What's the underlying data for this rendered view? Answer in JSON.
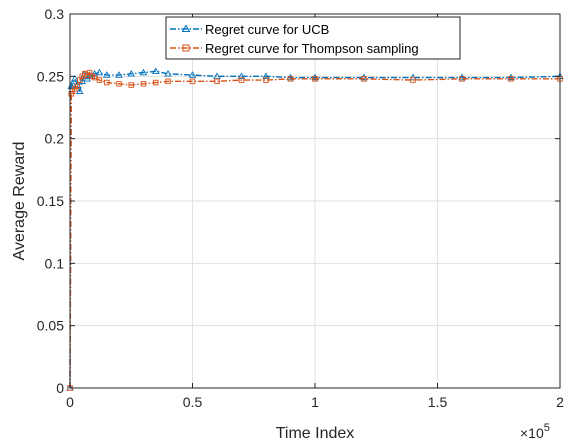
{
  "chart_data": {
    "type": "line",
    "xlabel": "Time Index",
    "ylabel": "Average Reward",
    "x_multiplier_base": "×10",
    "x_multiplier_exp": "5",
    "xlim": [
      0,
      2
    ],
    "ylim": [
      0,
      0.3
    ],
    "xticks": [
      0,
      0.5,
      1,
      1.5,
      2
    ],
    "xtick_labels": [
      "0",
      "0.5",
      "1",
      "1.5",
      "2"
    ],
    "yticks": [
      0,
      0.05,
      0.1,
      0.15,
      0.2,
      0.25,
      0.3
    ],
    "ytick_labels": [
      "0",
      "0.05",
      "0.1",
      "0.15",
      "0.2",
      "0.25",
      "0.3"
    ],
    "grid": true,
    "legend_position": "top-center",
    "series": [
      {
        "name": "Regret curve for UCB",
        "color": "#0072BD",
        "line_style": "dash-dot",
        "marker": "triangle",
        "x": [
          0,
          0.005,
          0.01,
          0.02,
          0.03,
          0.04,
          0.05,
          0.06,
          0.07,
          0.08,
          0.09,
          0.1,
          0.12,
          0.15,
          0.2,
          0.25,
          0.3,
          0.35,
          0.4,
          0.5,
          0.6,
          0.7,
          0.8,
          0.9,
          1.0,
          1.2,
          1.4,
          1.6,
          1.8,
          2.0
        ],
        "y": [
          0,
          0.242,
          0.244,
          0.248,
          0.243,
          0.238,
          0.246,
          0.252,
          0.248,
          0.251,
          0.25,
          0.252,
          0.253,
          0.251,
          0.251,
          0.252,
          0.253,
          0.254,
          0.252,
          0.251,
          0.25,
          0.25,
          0.25,
          0.249,
          0.249,
          0.249,
          0.249,
          0.249,
          0.249,
          0.25
        ]
      },
      {
        "name": "Regret curve for Thompson sampling",
        "color": "#D95319",
        "line_style": "dash-dot",
        "marker": "square",
        "x": [
          0,
          0.005,
          0.01,
          0.02,
          0.03,
          0.04,
          0.05,
          0.06,
          0.07,
          0.08,
          0.09,
          0.1,
          0.12,
          0.15,
          0.2,
          0.25,
          0.3,
          0.35,
          0.4,
          0.5,
          0.6,
          0.7,
          0.8,
          0.9,
          1.0,
          1.2,
          1.4,
          1.6,
          1.8,
          2.0
        ],
        "y": [
          0,
          0.236,
          0.238,
          0.24,
          0.242,
          0.247,
          0.25,
          0.252,
          0.251,
          0.253,
          0.25,
          0.249,
          0.247,
          0.245,
          0.244,
          0.243,
          0.244,
          0.245,
          0.246,
          0.246,
          0.246,
          0.247,
          0.247,
          0.248,
          0.248,
          0.248,
          0.247,
          0.248,
          0.248,
          0.248
        ]
      }
    ]
  }
}
